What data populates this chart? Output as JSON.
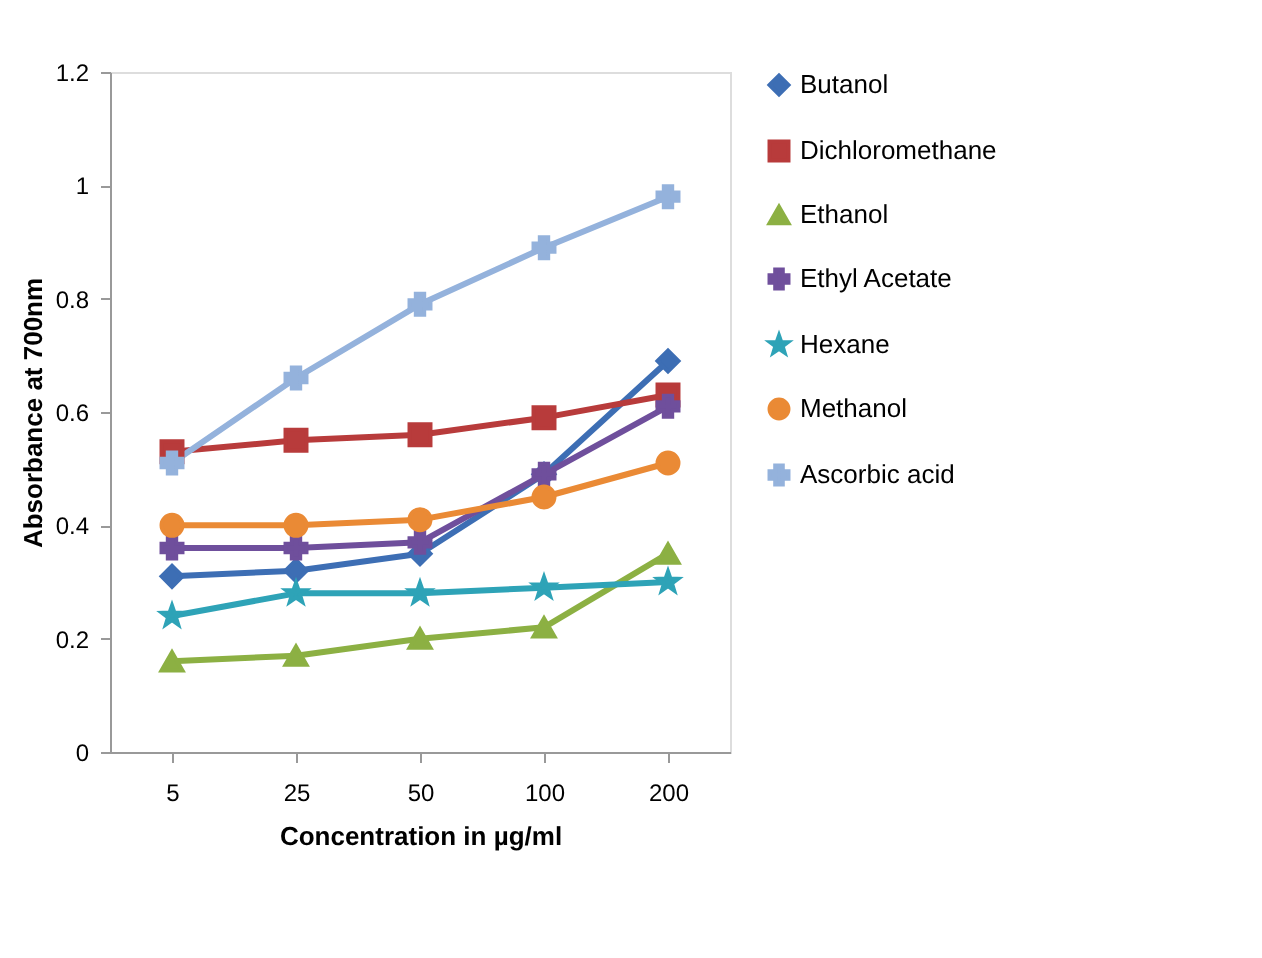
{
  "chart_data": {
    "type": "line",
    "xlabel": "Concentration in µg/ml",
    "ylabel": "Absorbance at 700nm",
    "categories": [
      "5",
      "25",
      "50",
      "100",
      "200"
    ],
    "series": [
      {
        "name": "Butanol",
        "color": "#3d6eb4",
        "marker": "diamond",
        "values": [
          0.31,
          0.32,
          0.35,
          0.49,
          0.69
        ]
      },
      {
        "name": "Dichloromethane",
        "color": "#b83b3b",
        "marker": "square",
        "values": [
          0.53,
          0.55,
          0.56,
          0.59,
          0.63
        ]
      },
      {
        "name": "Ethanol",
        "color": "#8cb043",
        "marker": "triangle",
        "values": [
          0.16,
          0.17,
          0.2,
          0.22,
          0.35
        ]
      },
      {
        "name": "Ethyl Acetate",
        "color": "#6f4f9c",
        "marker": "cross",
        "values": [
          0.36,
          0.36,
          0.37,
          0.49,
          0.61
        ]
      },
      {
        "name": "Hexane",
        "color": "#2ea3b7",
        "marker": "star",
        "values": [
          0.24,
          0.28,
          0.28,
          0.29,
          0.3
        ]
      },
      {
        "name": "Methanol",
        "color": "#ea8a35",
        "marker": "circle",
        "values": [
          0.4,
          0.4,
          0.41,
          0.45,
          0.51
        ]
      },
      {
        "name": "Ascorbic acid",
        "color": "#94b2dc",
        "marker": "cross",
        "values": [
          0.51,
          0.66,
          0.79,
          0.89,
          0.98
        ]
      }
    ],
    "ylim": [
      0,
      1.2
    ],
    "yticks": [
      0,
      0.2,
      0.4,
      0.6,
      0.8,
      1,
      1.2
    ],
    "grid": false,
    "legend": "right",
    "line_style": "solid"
  }
}
